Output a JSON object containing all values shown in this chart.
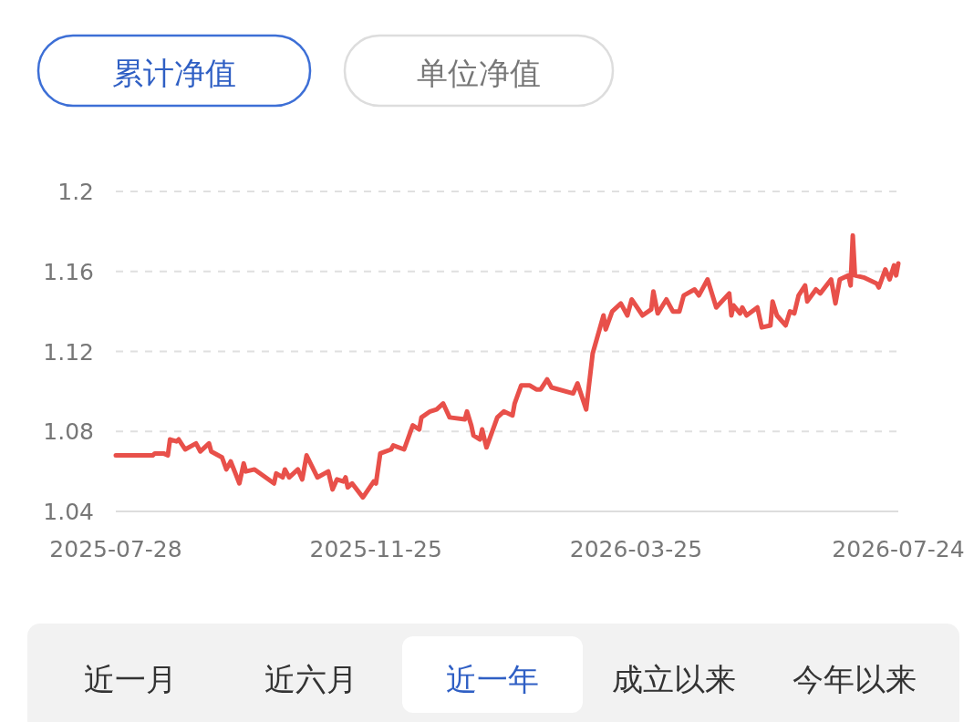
{
  "chart_data": {
    "type": "line",
    "annotations": [
      "累计净值",
      "单位净值",
      "近一月",
      "近六月",
      "近一年",
      "成立以来",
      "今年以来"
    ],
    "x": [
      "2025-07-28",
      "2025-08-14",
      "2025-08-15",
      "2025-08-19",
      "2025-08-21",
      "2025-08-22",
      "2025-08-25",
      "2025-08-26",
      "2025-08-29",
      "2025-09-03",
      "2025-09-05",
      "2025-09-09",
      "2025-09-10",
      "2025-09-15",
      "2025-09-17",
      "2025-09-19",
      "2025-09-23",
      "2025-09-25",
      "2025-09-26",
      "2025-09-30",
      "2025-10-09",
      "2025-10-10",
      "2025-10-13",
      "2025-10-14",
      "2025-10-16",
      "2025-10-20",
      "2025-10-22",
      "2025-10-24",
      "2025-10-29",
      "2025-11-03",
      "2025-11-05",
      "2025-11-07",
      "2025-11-10",
      "2025-11-11",
      "2025-11-12",
      "2025-11-14",
      "2025-11-19",
      "2025-11-24",
      "2025-11-25",
      "2025-11-27",
      "2025-12-02",
      "2025-12-03",
      "2025-12-08",
      "2025-12-12",
      "2025-12-15",
      "2025-12-16",
      "2025-12-20",
      "2025-12-23",
      "2025-12-26",
      "2025-12-29",
      "2026-01-05",
      "2026-01-06",
      "2026-01-08",
      "2026-01-09",
      "2026-01-12",
      "2026-01-13",
      "2026-01-15",
      "2026-01-20",
      "2026-01-23",
      "2026-01-27",
      "2026-01-28",
      "2026-01-31",
      "2026-02-04",
      "2026-02-07",
      "2026-02-09",
      "2026-02-12",
      "2026-02-14",
      "2026-02-24",
      "2026-02-26",
      "2026-03-02",
      "2026-03-05",
      "2026-03-10",
      "2026-03-11",
      "2026-03-14",
      "2026-03-18",
      "2026-03-21",
      "2026-03-23",
      "2026-03-28",
      "2026-04-01",
      "2026-04-02",
      "2026-04-04",
      "2026-04-08",
      "2026-04-11",
      "2026-04-14",
      "2026-04-16",
      "2026-04-21",
      "2026-04-23",
      "2026-04-27",
      "2026-05-01",
      "2026-05-07",
      "2026-05-08",
      "2026-05-09",
      "2026-05-12",
      "2026-05-13",
      "2026-05-15",
      "2026-05-20",
      "2026-05-22",
      "2026-05-26",
      "2026-05-27",
      "2026-05-29",
      "2026-06-02",
      "2026-06-04",
      "2026-06-06",
      "2026-06-08",
      "2026-06-11",
      "2026-06-12",
      "2026-06-16",
      "2026-06-18",
      "2026-06-23",
      "2026-06-25",
      "2026-06-27",
      "2026-07-01",
      "2026-07-02",
      "2026-07-03",
      "2026-07-04",
      "2026-07-08",
      "2026-07-14",
      "2026-07-15",
      "2026-07-18",
      "2026-07-20",
      "2026-07-22",
      "2026-07-23",
      "2026-07-24"
    ],
    "series": [
      {
        "color": "#e8504a",
        "values": [
          1.068,
          1.068,
          1.069,
          1.069,
          1.068,
          1.076,
          1.075,
          1.076,
          1.071,
          1.074,
          1.07,
          1.074,
          1.07,
          1.067,
          1.061,
          1.065,
          1.054,
          1.064,
          1.06,
          1.061,
          1.054,
          1.059,
          1.057,
          1.061,
          1.057,
          1.061,
          1.056,
          1.068,
          1.057,
          1.06,
          1.051,
          1.056,
          1.055,
          1.057,
          1.052,
          1.054,
          1.047,
          1.055,
          1.054,
          1.069,
          1.071,
          1.073,
          1.071,
          1.083,
          1.081,
          1.087,
          1.09,
          1.091,
          1.094,
          1.087,
          1.086,
          1.09,
          1.083,
          1.078,
          1.076,
          1.081,
          1.072,
          1.087,
          1.09,
          1.088,
          1.094,
          1.103,
          1.103,
          1.101,
          1.101,
          1.106,
          1.102,
          1.099,
          1.104,
          1.091,
          1.119,
          1.138,
          1.131,
          1.14,
          1.144,
          1.138,
          1.146,
          1.138,
          1.141,
          1.15,
          1.139,
          1.146,
          1.14,
          1.14,
          1.148,
          1.151,
          1.148,
          1.156,
          1.142,
          1.149,
          1.138,
          1.143,
          1.139,
          1.142,
          1.138,
          1.142,
          1.132,
          1.133,
          1.145,
          1.138,
          1.133,
          1.14,
          1.139,
          1.148,
          1.153,
          1.145,
          1.151,
          1.149,
          1.156,
          1.144,
          1.156,
          1.158,
          1.153,
          1.178,
          1.158,
          1.157,
          1.154,
          1.152,
          1.161,
          1.156,
          1.163,
          1.158,
          1.164
        ]
      }
    ],
    "xlim": [
      "2025-07-28",
      "2026-07-24"
    ],
    "ylim": [
      1.04,
      1.2
    ],
    "xticks": [
      "2025-07-28",
      "2025-11-25",
      "2026-03-25",
      "2026-07-24"
    ],
    "yticks": [
      1.04,
      1.08,
      1.12,
      1.16,
      1.2
    ],
    "grid": "y",
    "marker": "none",
    "line_style": "solid"
  }
}
